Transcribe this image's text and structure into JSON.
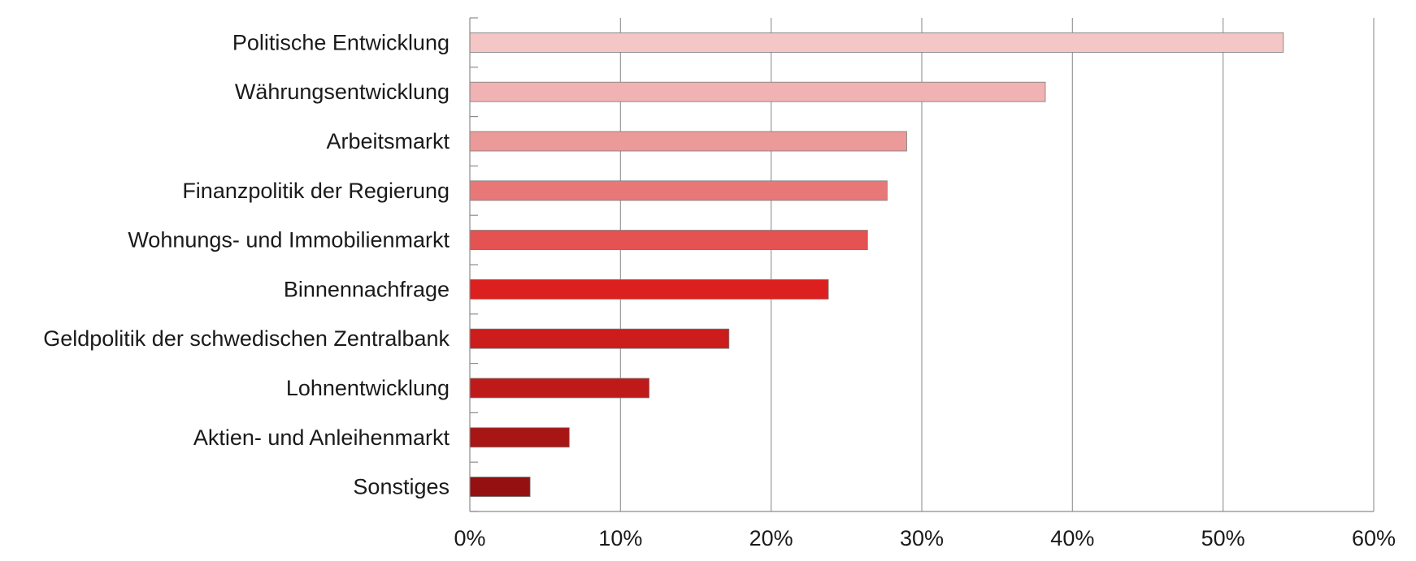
{
  "chart_data": {
    "type": "bar",
    "orientation": "horizontal",
    "title": "",
    "xlabel": "",
    "ylabel": "",
    "categories": [
      "Politische Entwicklung",
      "Währungsentwicklung",
      "Arbeitsmarkt",
      "Finanzpolitik der Regierung",
      "Wohnungs- und Immobilienmarkt",
      "Binnennachfrage",
      "Geldpolitik der schwedischen Zentralbank",
      "Lohnentwicklung",
      "Aktien- und Anleihenmarkt",
      "Sonstiges"
    ],
    "values": [
      54,
      38.2,
      29,
      27.7,
      26.4,
      23.8,
      17.2,
      11.9,
      6.6,
      4.0
    ],
    "colors": [
      "#f4c6c6",
      "#f0b2b2",
      "#ec9999",
      "#e87878",
      "#e45252",
      "#dc2020",
      "#cc1c1c",
      "#bf1a1a",
      "#a81515",
      "#951010"
    ],
    "xlim": [
      0,
      60
    ],
    "xticks": [
      0,
      10,
      20,
      30,
      40,
      50,
      60
    ],
    "xtick_labels": [
      "0%",
      "10%",
      "20%",
      "30%",
      "40%",
      "50%",
      "60%"
    ],
    "grid": "vertical",
    "legend": "none"
  }
}
